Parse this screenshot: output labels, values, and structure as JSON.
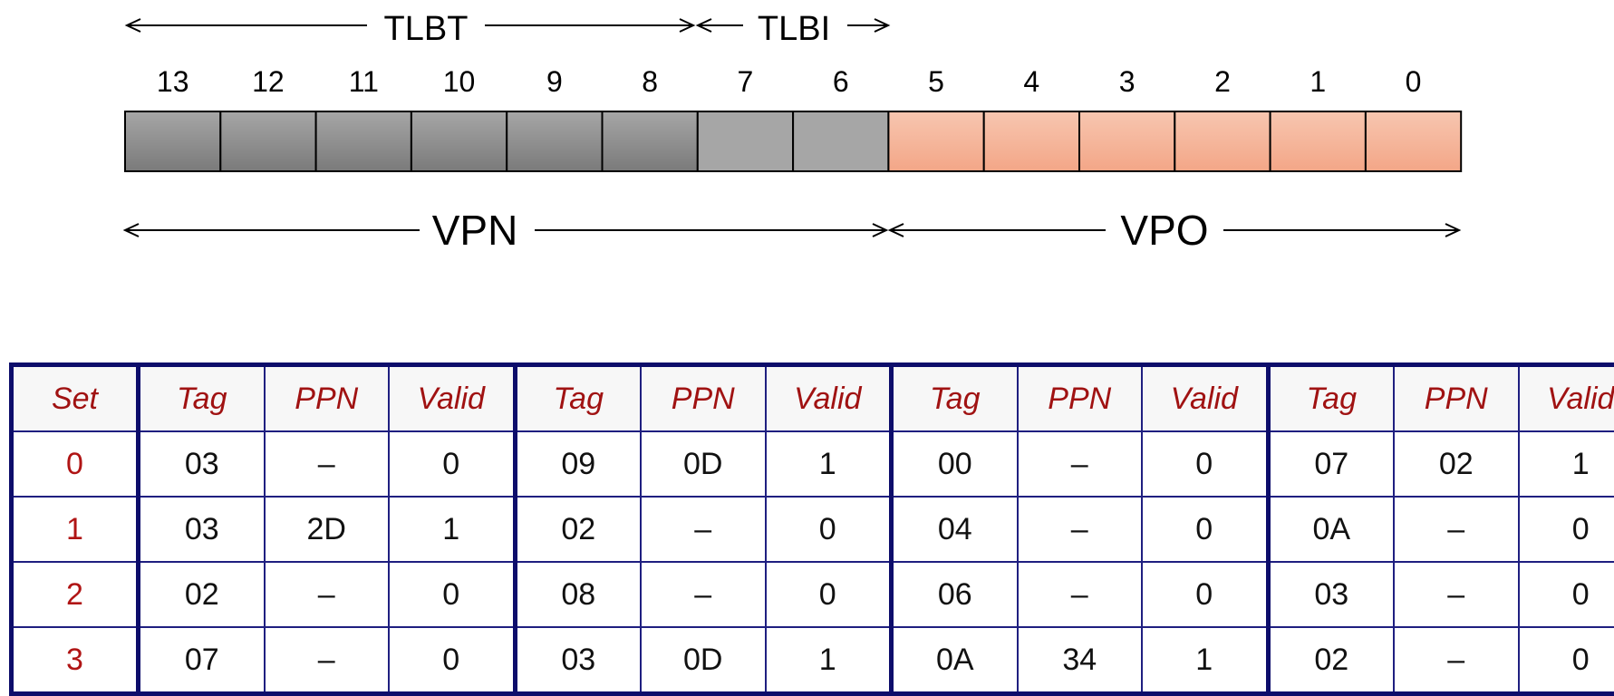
{
  "labels": {
    "tlbt": "TLBT",
    "tlbi": "TLBI",
    "vpn": "VPN",
    "vpo": "VPO"
  },
  "bits": [
    "13",
    "12",
    "11",
    "10",
    "9",
    "8",
    "7",
    "6",
    "5",
    "4",
    "3",
    "2",
    "1",
    "0"
  ],
  "colors": {
    "tag_fill_top": "#a6a6a6",
    "tag_fill_bottom": "#7a7a7a",
    "index_fill": "#a6a6a6",
    "offset_fill_top": "#f7c6b0",
    "offset_fill_bottom": "#f3a687",
    "table_border": "#0d0d6b",
    "header_text": "#a01212",
    "set_text": "#b01515"
  },
  "table": {
    "headers": [
      "Set",
      "Tag",
      "PPN",
      "Valid",
      "Tag",
      "PPN",
      "Valid",
      "Tag",
      "PPN",
      "Valid",
      "Tag",
      "PPN",
      "Valid"
    ],
    "rows": [
      [
        "0",
        "03",
        "–",
        "0",
        "09",
        "0D",
        "1",
        "00",
        "–",
        "0",
        "07",
        "02",
        "1"
      ],
      [
        "1",
        "03",
        "2D",
        "1",
        "02",
        "–",
        "0",
        "04",
        "–",
        "0",
        "0A",
        "–",
        "0"
      ],
      [
        "2",
        "02",
        "–",
        "0",
        "08",
        "–",
        "0",
        "06",
        "–",
        "0",
        "03",
        "–",
        "0"
      ],
      [
        "3",
        "07",
        "–",
        "0",
        "03",
        "0D",
        "1",
        "0A",
        "34",
        "1",
        "02",
        "–",
        "0"
      ]
    ]
  }
}
